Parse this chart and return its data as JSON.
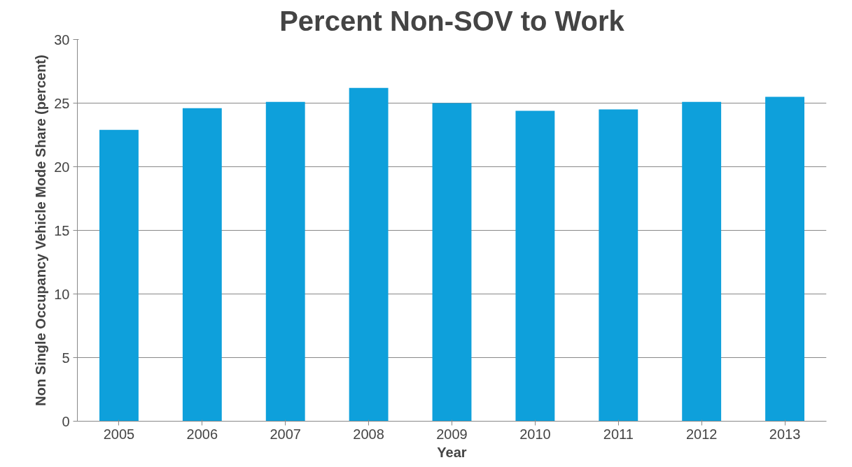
{
  "chart_data": {
    "type": "bar",
    "title": "Percent Non-SOV to Work",
    "xlabel": "Year",
    "ylabel": "Non Single Occupancy Vehicle Mode Share (percent)",
    "categories": [
      "2005",
      "2006",
      "2007",
      "2008",
      "2009",
      "2010",
      "2011",
      "2012",
      "2013"
    ],
    "values": [
      22.9,
      24.6,
      25.1,
      26.2,
      25.0,
      24.4,
      24.5,
      25.1,
      25.5
    ],
    "color": "#0ea0db",
    "ylim": [
      0,
      30
    ],
    "yticks": [
      0,
      5,
      10,
      15,
      20,
      25,
      30
    ],
    "grid": "y"
  }
}
